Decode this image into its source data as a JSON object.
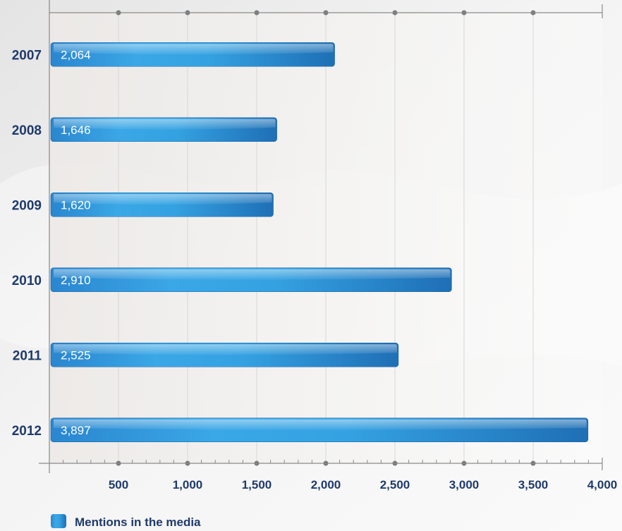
{
  "chart_data": {
    "type": "bar",
    "orientation": "horizontal",
    "categories": [
      "2007",
      "2008",
      "2009",
      "2010",
      "2011",
      "2012"
    ],
    "series": [
      {
        "name": "Mentions in the media",
        "values": [
          2064,
          1646,
          1620,
          2910,
          2525,
          3897
        ]
      }
    ],
    "value_labels": [
      "2,064",
      "1,646",
      "1,620",
      "2,910",
      "2,525",
      "3,897"
    ],
    "xlim": [
      0,
      4000
    ],
    "x_ticks": [
      500,
      1000,
      1500,
      2000,
      2500,
      3000,
      3500,
      4000
    ],
    "x_tick_labels": [
      "500",
      "1,000",
      "1,500",
      "2,000",
      "2,500",
      "3,000",
      "3,500",
      "4,000"
    ],
    "grid": true,
    "legend_position": "bottom-left",
    "colors": {
      "bar_main": "#2e8fd6",
      "bar_light": "#6cc6ef",
      "bar_dark": "#1f6fb5",
      "label_text": "#1f3a6b",
      "gridline": "#d8d8d8",
      "axis": "#8a8a8a",
      "marker": "#7a7a7a"
    }
  }
}
